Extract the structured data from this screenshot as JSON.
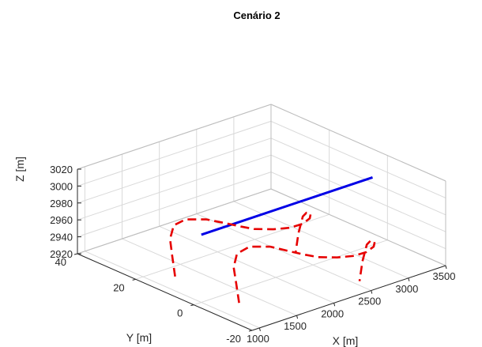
{
  "chart_data": {
    "type": "line3d",
    "title": "Cenário 2",
    "xlabel": "X [m]",
    "ylabel": "Y [m]",
    "zlabel": "Z [m]",
    "xlim": [
      900,
      3500
    ],
    "ylim": [
      -20,
      40
    ],
    "zlim": [
      2920,
      3020
    ],
    "x_ticks": [
      1000,
      1500,
      2000,
      2500,
      3000,
      3500
    ],
    "y_ticks": [
      -20,
      0,
      20,
      40
    ],
    "z_ticks": [
      2920,
      2940,
      2960,
      2980,
      3000,
      3020
    ],
    "grid": true,
    "colors": {
      "blue": "#0000e6",
      "red": "#e60000"
    },
    "series": [
      {
        "style": "solid",
        "color": "blue",
        "points": [
          [
            1000,
            0,
            3000
          ],
          [
            3300,
            0,
            3000
          ]
        ]
      },
      {
        "style": "dashed",
        "color": "red",
        "points": [
          [
            1000,
            9,
            2937
          ],
          [
            1000,
            10,
            2960
          ],
          [
            1010,
            11,
            2978
          ],
          [
            1040,
            10.5,
            2994
          ],
          [
            1100,
            8,
            3003
          ],
          [
            1200,
            3.5,
            3007
          ],
          [
            1300,
            -1,
            3006
          ],
          [
            1400,
            -3.5,
            3003
          ],
          [
            1500,
            -5.3,
            3000
          ],
          [
            1700,
            -6.8,
            2996
          ],
          [
            1900,
            -7.5,
            2993
          ],
          [
            2100,
            -6.5,
            2990
          ],
          [
            2300,
            -4,
            2987
          ],
          [
            2430,
            -1,
            2984
          ],
          [
            2490,
            2,
            2979
          ],
          [
            2500,
            3.5,
            2972
          ],
          [
            2500,
            5,
            2950
          ],
          [
            2500,
            6,
            2925
          ]
        ]
      },
      {
        "style": "dashed",
        "color": "red",
        "points": [
          [
            1000,
            -13,
            2939
          ],
          [
            1000,
            -12,
            2960
          ],
          [
            1005,
            -11,
            2978
          ],
          [
            1030,
            -11.5,
            2994
          ],
          [
            1100,
            -14,
            3004
          ],
          [
            1200,
            -18.5,
            3008
          ],
          [
            1300,
            -23,
            3006
          ],
          [
            1400,
            -25.5,
            3003
          ],
          [
            1500,
            -27.3,
            3000
          ],
          [
            1700,
            -28.8,
            2996
          ],
          [
            1900,
            -29.5,
            2993
          ],
          [
            2100,
            -28.5,
            2990
          ],
          [
            2300,
            -26,
            2987
          ],
          [
            2430,
            -23,
            2984
          ],
          [
            2490,
            -20,
            2979
          ],
          [
            2500,
            -18.5,
            2972
          ],
          [
            2500,
            -17,
            2950
          ],
          [
            2500,
            -16,
            2925
          ]
        ]
      }
    ]
  }
}
